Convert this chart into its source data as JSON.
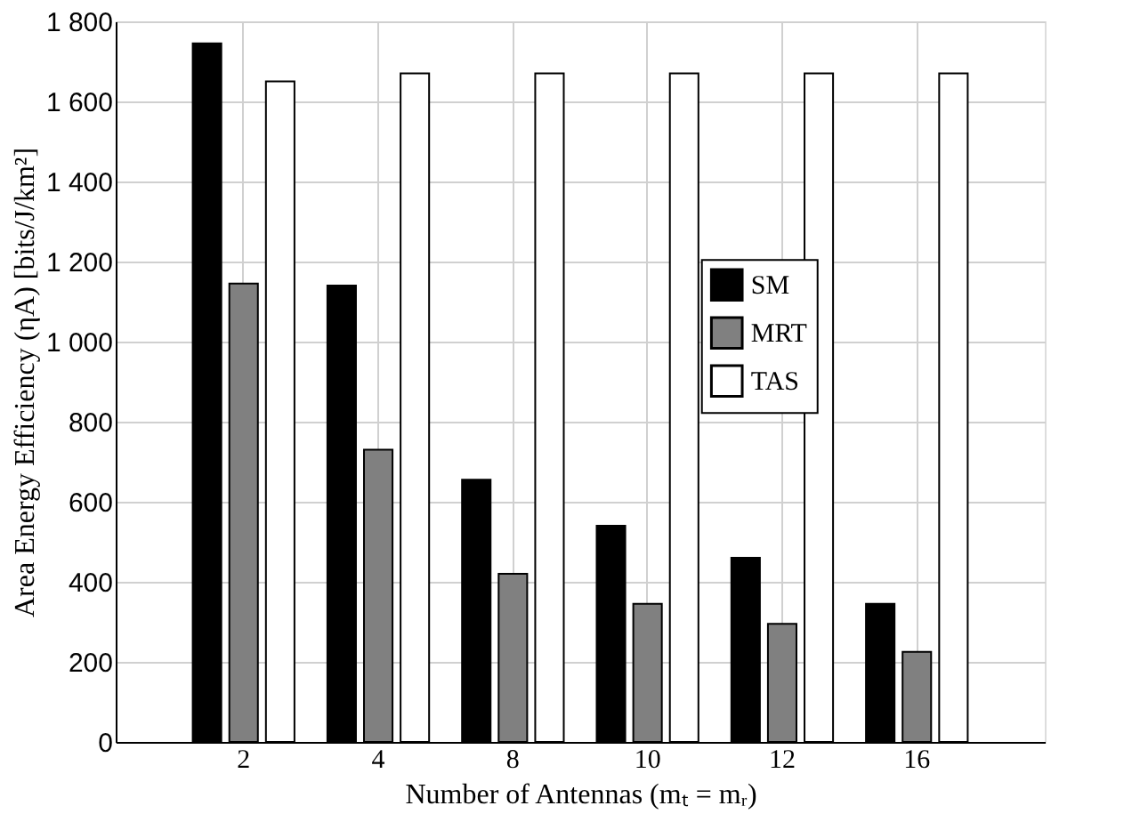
{
  "chart_data": {
    "type": "bar",
    "xlabel": "Number of Antennas (mₜ = mᵣ)",
    "ylabel": "Area Energy Efficiency (ηA) [bits/J/km²]",
    "categories": [
      "2",
      "4",
      "8",
      "10",
      "12",
      "16"
    ],
    "series": [
      {
        "name": "SM",
        "color": "#000000",
        "values": [
          1745,
          1140,
          655,
          540,
          460,
          345
        ]
      },
      {
        "name": "MRT",
        "color": "#808080",
        "values": [
          1145,
          730,
          420,
          345,
          295,
          225
        ]
      },
      {
        "name": "TAS",
        "color": "#ffffff",
        "values": [
          1650,
          1670,
          1670,
          1670,
          1670,
          1670
        ]
      }
    ],
    "ylim": [
      0,
      1800
    ],
    "yticks": [
      0,
      200,
      400,
      600,
      800,
      {
        "value": 1000,
        "label": "1 000"
      },
      {
        "value": 1200,
        "label": "1 200"
      },
      {
        "value": 1400,
        "label": "1 400"
      },
      {
        "value": 1600,
        "label": "1 600"
      },
      {
        "value": 1800,
        "label": "1 800"
      }
    ],
    "grid": true,
    "legend": "right"
  }
}
